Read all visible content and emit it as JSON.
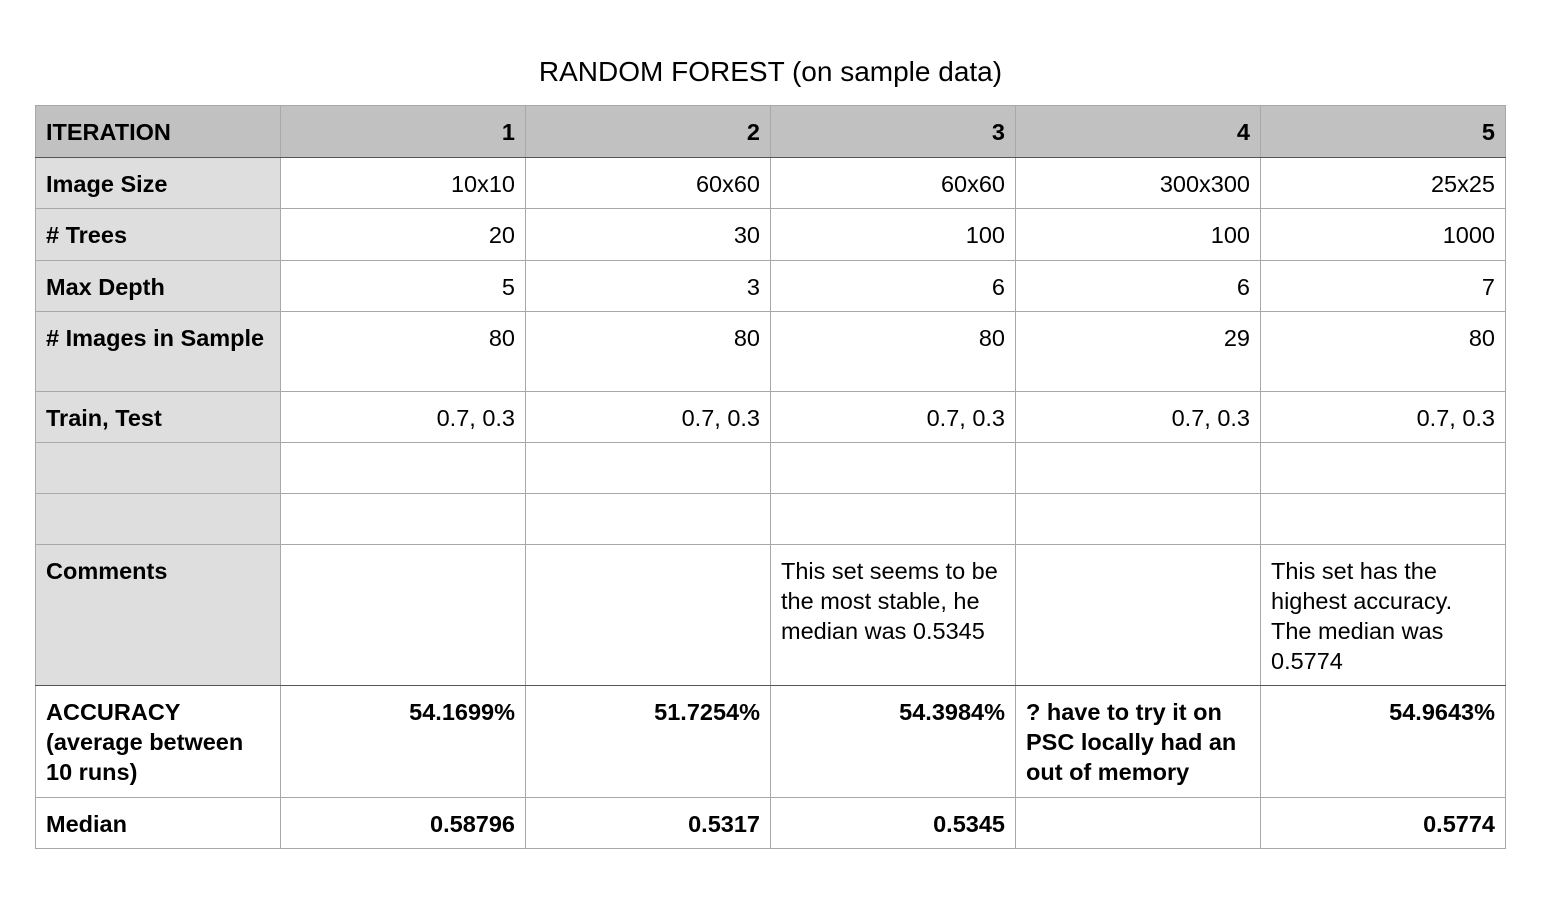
{
  "title": "RANDOM FOREST (on sample data)",
  "table": {
    "header": {
      "label": "ITERATION",
      "columns": [
        "1",
        "2",
        "3",
        "4",
        "5"
      ]
    },
    "rows": [
      {
        "label": "Image Size",
        "cells": [
          "10x10",
          "60x60",
          "60x60",
          "300x300",
          "25x25"
        ]
      },
      {
        "label": "# Trees",
        "cells": [
          "20",
          "30",
          "100",
          "100",
          "1000"
        ]
      },
      {
        "label": "Max Depth",
        "cells": [
          "5",
          "3",
          "6",
          "6",
          "7"
        ]
      },
      {
        "label": "# Images in Sample",
        "cells": [
          "80",
          "80",
          "80",
          "29",
          "80"
        ]
      },
      {
        "label": "Train, Test",
        "cells": [
          "0.7, 0.3",
          "0.7, 0.3",
          "0.7, 0.3",
          "0.7, 0.3",
          "0.7, 0.3"
        ]
      },
      {
        "label": "",
        "cells": [
          "",
          "",
          "",
          "",
          ""
        ]
      },
      {
        "label": "",
        "cells": [
          "",
          "",
          "",
          "",
          ""
        ]
      },
      {
        "label": "Comments",
        "cells": [
          "",
          "",
          "This set seems to be the most stable, he median was 0.5345",
          "",
          "This set has the highest accuracy. The median was 0.5774"
        ]
      },
      {
        "label": "ACCURACY (average between 10 runs)",
        "cells": [
          "54.1699%",
          "51.7254%",
          "54.3984%",
          "? have to try it on PSC locally had an out of memory",
          "54.9643%"
        ]
      },
      {
        "label": "Median",
        "cells": [
          "0.58796",
          "0.5317",
          "0.5345",
          "",
          "0.5774"
        ]
      }
    ]
  }
}
